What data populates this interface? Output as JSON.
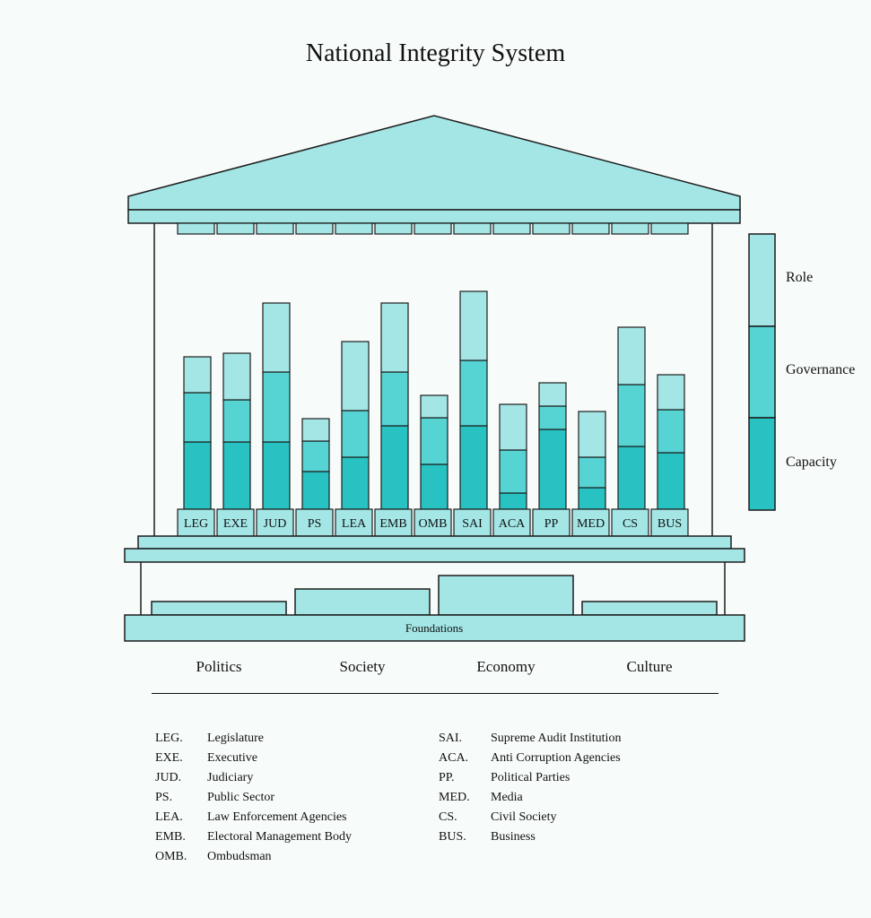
{
  "title": "National Integrity System",
  "colors": {
    "role": "#a4e6e6",
    "governance": "#56d3d3",
    "capacity": "#28c2c2",
    "structure": "#a4e6e6",
    "outline": "#1d1d1d",
    "background": "#f7fbf9"
  },
  "legend": [
    "Role",
    "Governance",
    "Capacity"
  ],
  "pillars": [
    {
      "abbr": "LEG",
      "capacity": 75,
      "governance": 55,
      "role": 40
    },
    {
      "abbr": "EXE",
      "capacity": 75,
      "governance": 47,
      "role": 52
    },
    {
      "abbr": "JUD",
      "capacity": 75,
      "governance": 78,
      "role": 77
    },
    {
      "abbr": "PS",
      "capacity": 42,
      "governance": 34,
      "role": 25
    },
    {
      "abbr": "LEA",
      "capacity": 58,
      "governance": 52,
      "role": 77
    },
    {
      "abbr": "EMB",
      "capacity": 93,
      "governance": 60,
      "role": 77
    },
    {
      "abbr": "OMB",
      "capacity": 50,
      "governance": 52,
      "role": 25
    },
    {
      "abbr": "SAI",
      "capacity": 93,
      "governance": 73,
      "role": 77
    },
    {
      "abbr": "ACA",
      "capacity": 18,
      "governance": 48,
      "role": 51
    },
    {
      "abbr": "PP",
      "capacity": 89,
      "governance": 26,
      "role": 26
    },
    {
      "abbr": "MED",
      "capacity": 24,
      "governance": 34,
      "role": 51
    },
    {
      "abbr": "CS",
      "capacity": 70,
      "governance": 69,
      "role": 64
    },
    {
      "abbr": "BUS",
      "capacity": 63,
      "governance": 48,
      "role": 39
    }
  ],
  "foundations_label": "Foundations",
  "foundations": [
    "Politics",
    "Society",
    "Economy",
    "Culture"
  ],
  "abbreviations_left": [
    {
      "abbr": "LEG.",
      "name": "Legislature"
    },
    {
      "abbr": "EXE.",
      "name": "Executive"
    },
    {
      "abbr": "JUD.",
      "name": "Judiciary"
    },
    {
      "abbr": "PS.",
      "name": "Public Sector"
    },
    {
      "abbr": "LEA.",
      "name": "Law Enforcement Agencies"
    },
    {
      "abbr": "EMB.",
      "name": "Electoral Management Body"
    },
    {
      "abbr": "OMB.",
      "name": "Ombudsman"
    }
  ],
  "abbreviations_right": [
    {
      "abbr": "SAI.",
      "name": "Supreme Audit Institution"
    },
    {
      "abbr": "ACA.",
      "name": "Anti Corruption Agencies"
    },
    {
      "abbr": "PP.",
      "name": "Political Parties"
    },
    {
      "abbr": "MED.",
      "name": "Media"
    },
    {
      "abbr": "CS.",
      "name": "Civil Society"
    },
    {
      "abbr": "BUS.",
      "name": "Business"
    }
  ]
}
